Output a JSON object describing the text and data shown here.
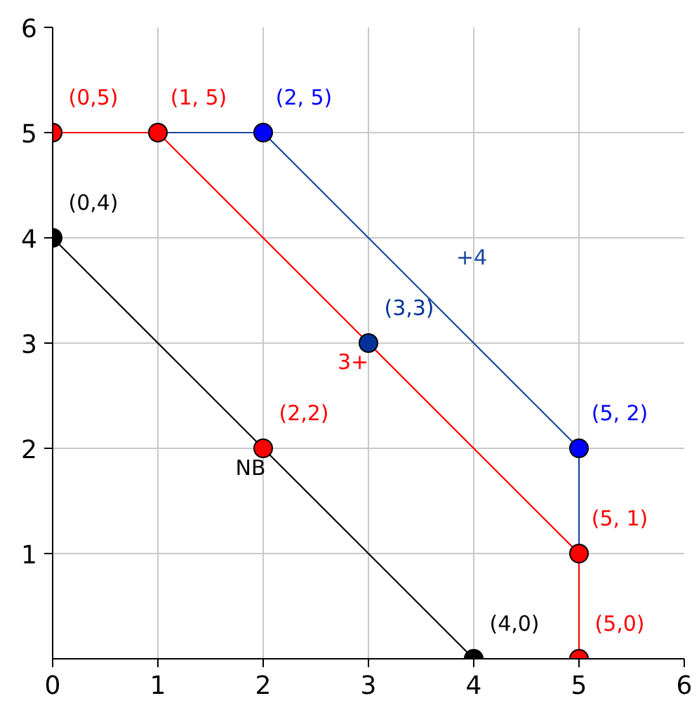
{
  "chart_data": {
    "type": "line",
    "xlim": [
      0,
      6
    ],
    "ylim": [
      0,
      6
    ],
    "xticks": [
      0,
      1,
      2,
      3,
      4,
      5,
      6
    ],
    "yticks": [
      1,
      2,
      3,
      4,
      5,
      6
    ],
    "grid": true,
    "legend": false,
    "marker": "circle",
    "series": [
      {
        "name": "3+",
        "color": "#ff0000",
        "x": [
          0,
          0,
          1,
          5,
          5,
          4
        ],
        "values": [
          4,
          5,
          5,
          1,
          0,
          0
        ],
        "marker": "none"
      },
      {
        "name": "+4",
        "color": "#1a47a0",
        "x": [
          1,
          2,
          5,
          5
        ],
        "values": [
          5,
          5,
          2,
          1
        ],
        "marker": "none"
      },
      {
        "name": "NB",
        "color": "#000000",
        "x": [
          0,
          4
        ],
        "values": [
          4,
          0
        ],
        "marker": "none"
      },
      {
        "type": "scatter",
        "name": "(0,5)",
        "color": "#ff0000",
        "x": [
          0
        ],
        "values": [
          5
        ]
      },
      {
        "type": "scatter",
        "name": "(1, 5)",
        "color": "#ff0000",
        "x": [
          1
        ],
        "values": [
          5
        ]
      },
      {
        "type": "scatter",
        "name": "(2, 5)",
        "color": "#0000ff",
        "x": [
          2
        ],
        "values": [
          5
        ]
      },
      {
        "type": "scatter",
        "name": "(0,4)",
        "color": "#000000",
        "x": [
          0
        ],
        "values": [
          4
        ]
      },
      {
        "type": "scatter",
        "name": "(3,3)",
        "color": "#003399",
        "x": [
          3
        ],
        "values": [
          3
        ]
      },
      {
        "type": "scatter",
        "name": "(2,2)",
        "color": "#ff0000",
        "x": [
          2
        ],
        "values": [
          2
        ]
      },
      {
        "type": "scatter",
        "name": "(5, 2)",
        "color": "#0000ff",
        "x": [
          5
        ],
        "values": [
          2
        ]
      },
      {
        "type": "scatter",
        "name": "(5, 1)",
        "color": "#ff0000",
        "x": [
          5
        ],
        "values": [
          1
        ]
      },
      {
        "type": "scatter",
        "name": "(4,0)",
        "color": "#000000",
        "x": [
          4
        ],
        "values": [
          0
        ]
      },
      {
        "type": "scatter",
        "name": "(5,0)",
        "color": "#ff0000",
        "x": [
          5
        ],
        "values": [
          0
        ]
      }
    ]
  }
}
